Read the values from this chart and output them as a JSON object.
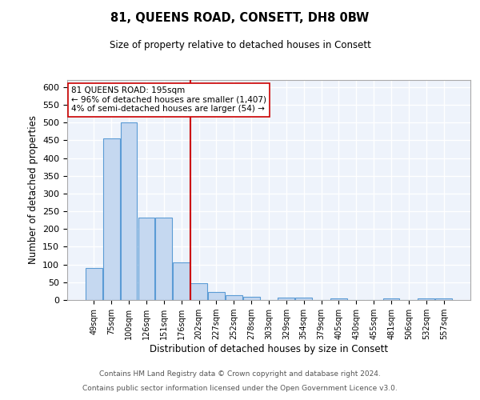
{
  "title": "81, QUEENS ROAD, CONSETT, DH8 0BW",
  "subtitle": "Size of property relative to detached houses in Consett",
  "xlabel": "Distribution of detached houses by size in Consett",
  "ylabel": "Number of detached properties",
  "categories": [
    "49sqm",
    "75sqm",
    "100sqm",
    "126sqm",
    "151sqm",
    "176sqm",
    "202sqm",
    "227sqm",
    "252sqm",
    "278sqm",
    "303sqm",
    "329sqm",
    "354sqm",
    "379sqm",
    "405sqm",
    "430sqm",
    "455sqm",
    "481sqm",
    "506sqm",
    "532sqm",
    "557sqm"
  ],
  "values": [
    90,
    455,
    500,
    232,
    232,
    105,
    48,
    22,
    14,
    9,
    0,
    6,
    6,
    0,
    5,
    0,
    0,
    5,
    0,
    5,
    5
  ],
  "bar_color": "#c5d8f0",
  "bar_edge_color": "#5b9bd5",
  "background_color": "#eef3fb",
  "grid_color": "#ffffff",
  "vline_x_index": 6,
  "vline_color": "#cc0000",
  "annotation_text": "81 QUEENS ROAD: 195sqm\n← 96% of detached houses are smaller (1,407)\n4% of semi-detached houses are larger (54) →",
  "annotation_box_color": "#ffffff",
  "annotation_box_edge": "#cc0000",
  "footnote_line1": "Contains HM Land Registry data © Crown copyright and database right 2024.",
  "footnote_line2": "Contains public sector information licensed under the Open Government Licence v3.0.",
  "ylim": [
    0,
    620
  ],
  "yticks": [
    0,
    50,
    100,
    150,
    200,
    250,
    300,
    350,
    400,
    450,
    500,
    550,
    600
  ]
}
